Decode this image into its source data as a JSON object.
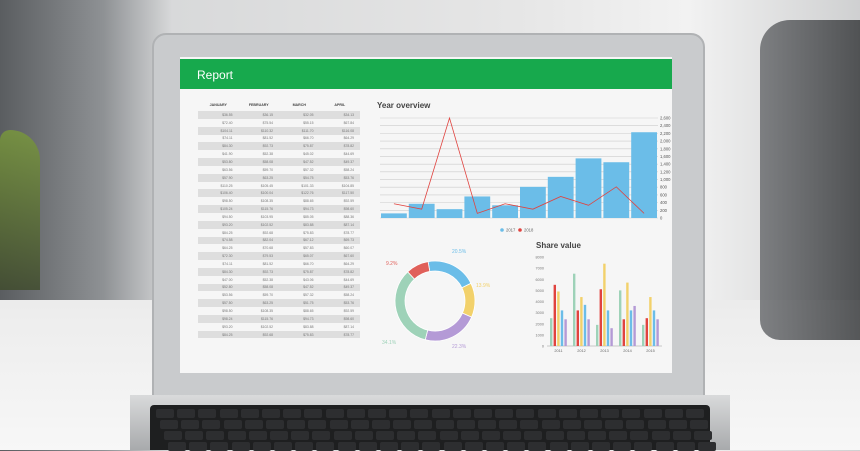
{
  "report": {
    "title": "Report"
  },
  "table": {
    "columns": [
      "JANUARY",
      "FEBRUARY",
      "MARCH",
      "APRIL"
    ],
    "rows": [
      [
        "$36.55",
        "$36.15",
        "$32.05",
        "$34.13"
      ],
      [
        "$72.40",
        "$75.54",
        "$55.15",
        "$67.84"
      ],
      [
        "$104.11",
        "$110.32",
        "$111.70",
        "$116.08"
      ],
      [
        "$74.11",
        "$81.52",
        "$66.70",
        "$64.29"
      ],
      [
        "$84.30",
        "$92.73",
        "$75.87",
        "$78.82"
      ],
      [
        "$41.90",
        "$52.38",
        "$45.02",
        "$44.69"
      ],
      [
        "$53.80",
        "$58.08",
        "$47.52",
        "$49.37"
      ],
      [
        "$63.56",
        "$59.70",
        "$57.32",
        "$58.24"
      ],
      [
        "$57.90",
        "$63.25",
        "$54.75",
        "$53.76"
      ],
      [
        "$110.25",
        "$105.45",
        "$101.33",
        "$104.85"
      ],
      [
        "$106.40",
        "$100.04",
        "$122.76",
        "$117.50"
      ],
      [
        "$98.50",
        "$108.35",
        "$88.65",
        "$92.59"
      ],
      [
        "$105.24",
        "$115.76",
        "$94.73",
        "$98.60"
      ],
      [
        "$94.50",
        "$103.95",
        "$85.05",
        "$88.36"
      ],
      [
        "$93.20",
        "$102.52",
        "$83.88",
        "$87.14"
      ],
      [
        "$84.25",
        "$92.68",
        "$75.83",
        "$78.77"
      ],
      [
        "$74.58",
        "$82.04",
        "$67.12",
        "$69.73"
      ],
      [
        "$64.25",
        "$70.68",
        "$57.83",
        "$60.07"
      ],
      [
        "$72.30",
        "$79.53",
        "$65.07",
        "$67.60"
      ],
      [
        "$74.11",
        "$81.52",
        "$66.70",
        "$64.29"
      ],
      [
        "$84.30",
        "$92.73",
        "$75.87",
        "$78.82"
      ],
      [
        "$47.00",
        "$52.38",
        "$43.06",
        "$44.69"
      ],
      [
        "$52.80",
        "$58.08",
        "$47.52",
        "$49.37"
      ],
      [
        "$53.56",
        "$59.70",
        "$57.32",
        "$58.24"
      ],
      [
        "$57.50",
        "$63.25",
        "$51.75",
        "$53.76"
      ],
      [
        "$98.50",
        "$108.35",
        "$88.65",
        "$92.59"
      ],
      [
        "$98.24",
        "$115.76",
        "$94.73",
        "$98.60"
      ],
      [
        "$93.20",
        "$102.52",
        "$83.88",
        "$87.14"
      ],
      [
        "$84.25",
        "$92.68",
        "$75.83",
        "$78.77"
      ]
    ]
  },
  "chart_data": [
    {
      "type": "bar",
      "title": "Year overview",
      "ylim": [
        0,
        2600
      ],
      "yticks": [
        "0",
        "200",
        "400",
        "600",
        "800",
        "1,000",
        "1,200",
        "1,400",
        "1,600",
        "1,800",
        "2,000",
        "2,200",
        "2,400",
        "2,600"
      ],
      "grid": true,
      "legend": "bottom",
      "series": [
        {
          "name": "2017",
          "type": "bar",
          "color": "#6bbde8",
          "values": [
            120,
            370,
            230,
            560,
            330,
            810,
            1070,
            1550,
            1450,
            2230
          ]
        },
        {
          "name": "2018",
          "type": "line",
          "color": "#e0433f",
          "values": [
            370,
            230,
            2600,
            120,
            370,
            230,
            560,
            330,
            810,
            120
          ]
        }
      ]
    },
    {
      "type": "pie",
      "donut": true,
      "labels": [
        "20.5%",
        "13.9%",
        "22.3%",
        "34.1%",
        "9.2%"
      ],
      "values": [
        20.5,
        13.9,
        22.3,
        34.1,
        9.2
      ],
      "colors": [
        "#6bbde8",
        "#f2d16b",
        "#b49ad6",
        "#9ed2b8",
        "#e0605a"
      ]
    },
    {
      "type": "bar",
      "title": "Share value",
      "ylim": [
        0,
        8000
      ],
      "yticks": [
        "0",
        "1000",
        "2000",
        "3000",
        "4000",
        "5000",
        "6000",
        "7000",
        "8000"
      ],
      "categories": [
        "2011",
        "2012",
        "2013",
        "2014",
        "2015"
      ],
      "series": [
        {
          "color": "#9ed2b8",
          "values": [
            2500,
            6500,
            1900,
            5000,
            1900
          ]
        },
        {
          "color": "#e0433f",
          "values": [
            5500,
            3200,
            5100,
            2400,
            2500
          ]
        },
        {
          "color": "#f2d16b",
          "values": [
            4900,
            4400,
            7400,
            5700,
            4400
          ]
        },
        {
          "color": "#6bbde8",
          "values": [
            3200,
            3700,
            3200,
            3200,
            3200
          ]
        },
        {
          "color": "#b49ad6",
          "values": [
            2400,
            2400,
            1600,
            3600,
            2400
          ]
        }
      ]
    }
  ]
}
